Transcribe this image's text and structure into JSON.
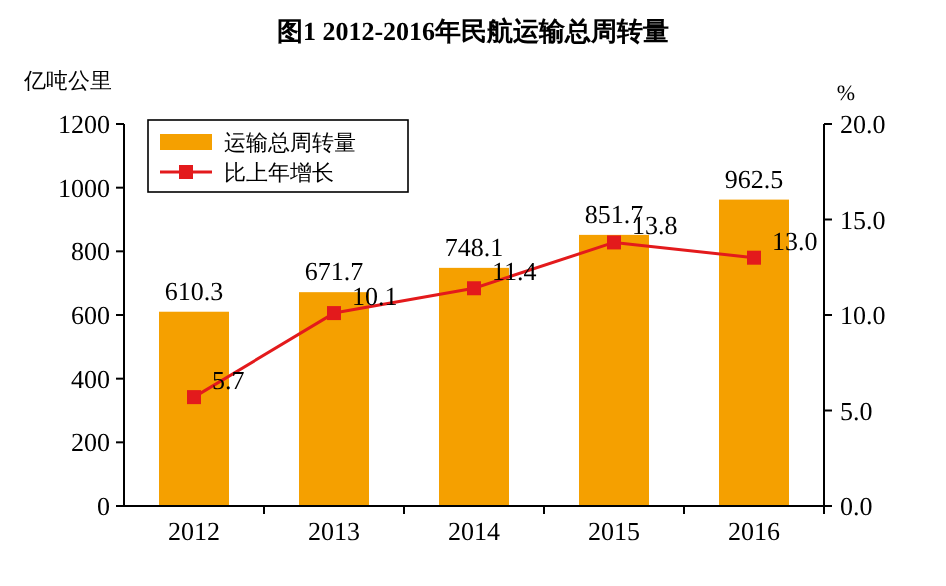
{
  "chart_data": {
    "type": "bar",
    "title": "图1 2012-2016年民航运输总周转量",
    "ylabel": "亿吨公里",
    "y2label": "%",
    "categories": [
      "2012",
      "2013",
      "2014",
      "2015",
      "2016"
    ],
    "series": [
      {
        "name": "运输总周转量",
        "color": "#f5a000",
        "values": [
          610.3,
          671.7,
          748.1,
          851.7,
          962.5
        ]
      },
      {
        "name": "比上年增长",
        "type": "line",
        "axis": "y2",
        "color": "#e31a1c",
        "marker": "square",
        "values": [
          5.7,
          10.1,
          11.4,
          13.8,
          13.0
        ],
        "value_labels": [
          "5.7",
          "10.1",
          "11.4",
          "13.8",
          "13.0"
        ]
      }
    ],
    "ylim": [
      0,
      1200
    ],
    "yticks": [
      0,
      200,
      400,
      600,
      800,
      1000,
      1200
    ],
    "y2lim": [
      0,
      20
    ],
    "y2ticks": [
      {
        "value": 0,
        "label": "0.0"
      },
      {
        "value": 5,
        "label": "5.0"
      },
      {
        "value": 10,
        "label": "10.0"
      },
      {
        "value": 15,
        "label": "15.0"
      },
      {
        "value": 20,
        "label": "20.0"
      }
    ],
    "data_labels": true,
    "legend": "top left",
    "grid": false
  }
}
